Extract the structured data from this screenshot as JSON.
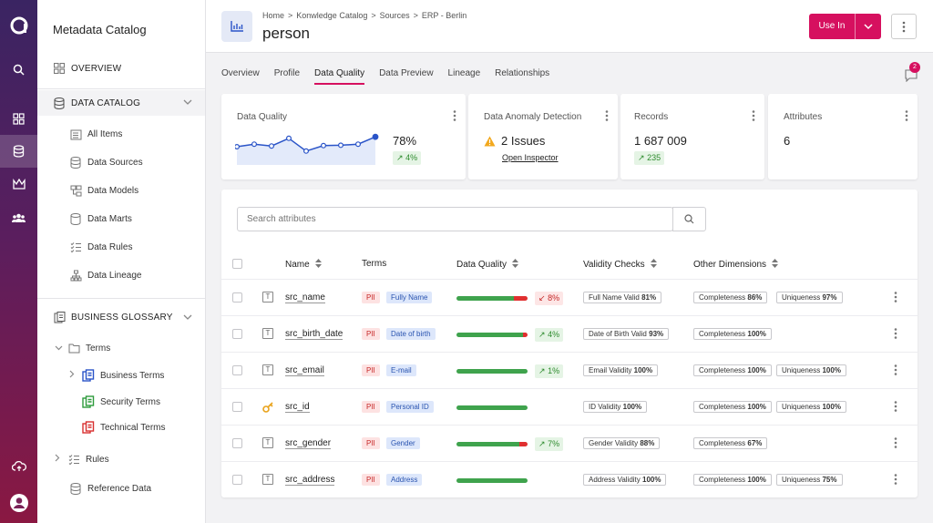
{
  "app": {
    "sidebar_title": "Metadata Catalog"
  },
  "sidebar": {
    "overview": "OVERVIEW",
    "data_catalog": "DATA CATALOG",
    "catalog_items": [
      "All Items",
      "Data Sources",
      "Data Models",
      "Data Marts",
      "Data Rules",
      "Data Lineage"
    ],
    "business_glossary": "BUSINESS GLOSSARY",
    "terms": "Terms",
    "term_children": [
      "Business Terms",
      "Security Terms",
      "Technical Terms"
    ],
    "rules": "Rules",
    "reference_data": "Reference Data"
  },
  "header": {
    "breadcrumbs": [
      "Home",
      ">",
      "Konwledge Catalog",
      ">",
      "Sources",
      ">",
      "ERP - Berlin"
    ],
    "title": "person",
    "use_in": "Use In"
  },
  "tabs": [
    "Overview",
    "Profile",
    "Data Quality",
    "Data Preview",
    "Lineage",
    "Relationships"
  ],
  "notifications": "2",
  "cards": {
    "data_quality": {
      "title": "Data Quality",
      "value": "78%",
      "delta": "4%",
      "spark": [
        0.55,
        0.62,
        0.57,
        0.78,
        0.43,
        0.58,
        0.59,
        0.62,
        0.82
      ]
    },
    "anomaly": {
      "title": "Data Anomaly Detection",
      "value": "2 Issues",
      "link": "Open Inspector"
    },
    "records": {
      "title": "Records",
      "value": "1 687 009",
      "delta": "235"
    },
    "attributes": {
      "title": "Attributes",
      "value": "6"
    }
  },
  "table": {
    "search_placeholder": "Search attributes",
    "headers": {
      "name": "Name",
      "terms": "Terms",
      "dq": "Data Quality",
      "validity": "Validity Checks",
      "other": "Other Dimensions"
    },
    "pii_label": "PII",
    "rows": [
      {
        "name": "src_name",
        "icon": "text-type-icon",
        "term": "Fully Name",
        "dq_pct": 81,
        "dq_delta": "8%",
        "dq_dir": "down",
        "validity_label": "Full Name Valid",
        "validity_value": "81%",
        "other": [
          [
            "Completeness",
            "86%"
          ],
          [
            "Uniqueness",
            "97%"
          ]
        ]
      },
      {
        "name": "src_birth_date",
        "icon": "text-type-icon",
        "term": "Date of birth",
        "dq_pct": 93,
        "dq_delta": "4%",
        "dq_dir": "up",
        "validity_label": "Date of Birth Valid",
        "validity_value": "93%",
        "other": [
          [
            "Completeness",
            "100%"
          ]
        ]
      },
      {
        "name": "src_email",
        "icon": "text-type-icon",
        "term": "E-mail",
        "dq_pct": 100,
        "dq_delta": "1%",
        "dq_dir": "up",
        "validity_label": "Email Validity",
        "validity_value": "100%",
        "other": [
          [
            "Completeness",
            "100%"
          ],
          [
            "Uniqueness",
            "100%"
          ]
        ]
      },
      {
        "name": "src_id",
        "icon": "key-icon",
        "term": "Personal ID",
        "dq_pct": 100,
        "dq_delta": "",
        "dq_dir": "",
        "validity_label": "ID Validity",
        "validity_value": "100%",
        "other": [
          [
            "Completeness",
            "100%"
          ],
          [
            "Uniqueness",
            "100%"
          ]
        ]
      },
      {
        "name": "src_gender",
        "icon": "text-type-icon",
        "term": "Gender",
        "dq_pct": 88,
        "dq_delta": "7%",
        "dq_dir": "up",
        "validity_label": "Gender Validity",
        "validity_value": "88%",
        "other": [
          [
            "Completeness",
            "67%"
          ]
        ]
      },
      {
        "name": "src_address",
        "icon": "text-type-icon",
        "term": "Address",
        "dq_pct": 100,
        "dq_delta": "",
        "dq_dir": "",
        "validity_label": "Address Validity",
        "validity_value": "100%",
        "other": [
          [
            "Completeness",
            "100%"
          ],
          [
            "Uniqueness",
            "75%"
          ]
        ]
      }
    ]
  },
  "colors": {
    "accent": "#d6105f",
    "green": "#3fa34d",
    "red": "#e03030",
    "chart_line": "#2a54c8"
  }
}
